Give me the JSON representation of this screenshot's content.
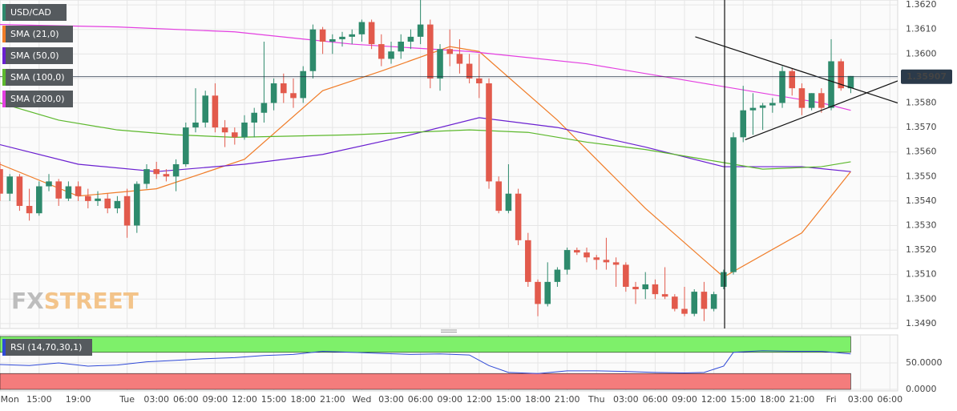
{
  "chart_data": [
    {
      "type": "candlestick",
      "title": "USD/CAD",
      "x": [
        0,
        1,
        2,
        3,
        4,
        5,
        6,
        7,
        8,
        9,
        10,
        11,
        12,
        13,
        14,
        15,
        16,
        17,
        18,
        19,
        20,
        21,
        22,
        23,
        24,
        25,
        26,
        27,
        28,
        29,
        30,
        31,
        32,
        33,
        34,
        35,
        36,
        37,
        38,
        39,
        40,
        41,
        42,
        43,
        44,
        45,
        46,
        47,
        48,
        49,
        50,
        51,
        52,
        53,
        54,
        55,
        56,
        57,
        58,
        59,
        60,
        61,
        62,
        63,
        64,
        65,
        66,
        67,
        68,
        69,
        70,
        71,
        72,
        73,
        74,
        75,
        76,
        77,
        78,
        79,
        80,
        81,
        82,
        83,
        84,
        85,
        86,
        87
      ],
      "open": [
        1.3553,
        1.3543,
        1.355,
        1.3538,
        1.3535,
        1.3546,
        1.3548,
        1.3541,
        1.3546,
        1.3542,
        1.354,
        1.3541,
        1.3537,
        1.3542,
        1.353,
        1.3547,
        1.3553,
        1.3551,
        1.355,
        1.3555,
        1.357,
        1.3572,
        1.3583,
        1.357,
        1.3568,
        1.3566,
        1.3572,
        1.3576,
        1.358,
        1.3588,
        1.3584,
        1.3582,
        1.3593,
        1.361,
        1.3605,
        1.3606,
        1.3607,
        1.3608,
        1.3613,
        1.3604,
        1.3598,
        1.3601,
        1.3605,
        1.3607,
        1.3612,
        1.359,
        1.3602,
        1.36,
        1.3596,
        1.359,
        1.3588,
        1.3548,
        1.3536,
        1.3543,
        1.3524,
        1.3507,
        1.3498,
        1.3507,
        1.3512,
        1.352,
        1.3519,
        1.3517,
        1.3516,
        1.3515,
        1.3514,
        1.3505,
        1.3504,
        1.3506,
        1.3502,
        1.3501,
        1.3496,
        1.3494,
        1.3503,
        1.3496,
        1.3505,
        1.3511,
        1.3566,
        1.3577,
        1.3578,
        1.3579,
        1.358,
        1.3593,
        1.3586,
        1.3578,
        1.3584,
        1.3578,
        1.3597,
        1.3586
      ],
      "high": [
        1.3556,
        1.3551,
        1.3551,
        1.3545,
        1.3548,
        1.3551,
        1.3549,
        1.3548,
        1.3548,
        1.3545,
        1.3544,
        1.3543,
        1.3542,
        1.3545,
        1.3548,
        1.3555,
        1.3556,
        1.3553,
        1.3557,
        1.3572,
        1.3586,
        1.3585,
        1.3588,
        1.3573,
        1.357,
        1.3575,
        1.3578,
        1.3605,
        1.359,
        1.3592,
        1.359,
        1.3595,
        1.3612,
        1.3611,
        1.3608,
        1.3609,
        1.361,
        1.3614,
        1.3614,
        1.3608,
        1.3605,
        1.3608,
        1.361,
        1.3625,
        1.3614,
        1.3604,
        1.361,
        1.3606,
        1.36,
        1.36,
        1.359,
        1.355,
        1.3555,
        1.3545,
        1.3527,
        1.3508,
        1.3515,
        1.3513,
        1.3521,
        1.3521,
        1.3521,
        1.3518,
        1.3525,
        1.3517,
        1.3515,
        1.3507,
        1.3511,
        1.3508,
        1.3513,
        1.3502,
        1.3505,
        1.3504,
        1.3507,
        1.3503,
        1.3512,
        1.3568,
        1.3587,
        1.3584,
        1.358,
        1.3582,
        1.3595,
        1.3594,
        1.3588,
        1.3584,
        1.3586,
        1.3606,
        1.3598,
        1.3591
      ],
      "low": [
        1.354,
        1.354,
        1.3536,
        1.3532,
        1.3534,
        1.3544,
        1.3538,
        1.354,
        1.354,
        1.3537,
        1.3538,
        1.3535,
        1.3535,
        1.3525,
        1.3527,
        1.3545,
        1.3549,
        1.3548,
        1.3544,
        1.3554,
        1.3568,
        1.357,
        1.3568,
        1.3562,
        1.3563,
        1.3565,
        1.3566,
        1.3572,
        1.3577,
        1.358,
        1.3578,
        1.358,
        1.359,
        1.36,
        1.36,
        1.3603,
        1.3604,
        1.3605,
        1.3602,
        1.3595,
        1.3596,
        1.3598,
        1.3602,
        1.3604,
        1.3586,
        1.3585,
        1.3595,
        1.3592,
        1.3588,
        1.3582,
        1.3545,
        1.3535,
        1.3535,
        1.3522,
        1.3505,
        1.3493,
        1.3497,
        1.3505,
        1.351,
        1.3518,
        1.3515,
        1.3512,
        1.3512,
        1.3505,
        1.3503,
        1.3498,
        1.35,
        1.35,
        1.35,
        1.3495,
        1.3493,
        1.3493,
        1.3491,
        1.3495,
        1.3504,
        1.351,
        1.3564,
        1.3567,
        1.3569,
        1.3576,
        1.3578,
        1.3583,
        1.3575,
        1.3577,
        1.3576,
        1.3577,
        1.3585,
        1.3584
      ],
      "close": [
        1.3543,
        1.355,
        1.3538,
        1.3535,
        1.3546,
        1.3548,
        1.3541,
        1.3546,
        1.3542,
        1.354,
        1.3541,
        1.3537,
        1.354,
        1.353,
        1.3547,
        1.3553,
        1.3551,
        1.355,
        1.3555,
        1.357,
        1.3572,
        1.3583,
        1.357,
        1.3568,
        1.3566,
        1.3572,
        1.3576,
        1.358,
        1.3588,
        1.3584,
        1.3582,
        1.3593,
        1.361,
        1.3605,
        1.3606,
        1.3607,
        1.3608,
        1.3613,
        1.3604,
        1.3598,
        1.3601,
        1.3605,
        1.3607,
        1.3612,
        1.359,
        1.3602,
        1.36,
        1.3596,
        1.359,
        1.3588,
        1.3548,
        1.3536,
        1.3543,
        1.3524,
        1.3507,
        1.3498,
        1.3507,
        1.3512,
        1.352,
        1.3519,
        1.3517,
        1.3516,
        1.3515,
        1.3514,
        1.3505,
        1.3504,
        1.3506,
        1.3502,
        1.3501,
        1.3496,
        1.3494,
        1.3503,
        1.3496,
        1.3502,
        1.3511,
        1.3566,
        1.3577,
        1.3578,
        1.3579,
        1.358,
        1.3593,
        1.3586,
        1.3578,
        1.3584,
        1.3578,
        1.3597,
        1.3586,
        1.3591
      ],
      "up_color": "#2e8a6c",
      "down_color": "#e25a4c",
      "title_color": "#2e8a6c",
      "series": [
        {
          "name": "SMA (21,0)",
          "color": "#f07c28",
          "x": [
            0,
            8,
            16,
            25,
            33,
            39,
            46,
            49,
            57,
            66,
            74,
            82,
            87
          ],
          "values": [
            1.3555,
            1.3542,
            1.3545,
            1.3557,
            1.3585,
            1.3593,
            1.3603,
            1.3601,
            1.3573,
            1.3537,
            1.3509,
            1.3527,
            1.3552
          ]
        },
        {
          "name": "SMA (50,0)",
          "color": "#6a1fd0",
          "x": [
            0,
            8,
            16,
            25,
            33,
            41,
            49,
            57,
            66,
            74,
            82,
            87
          ],
          "values": [
            1.3563,
            1.3555,
            1.3552,
            1.3555,
            1.3559,
            1.3566,
            1.3574,
            1.357,
            1.3562,
            1.3554,
            1.3554,
            1.3552
          ]
        },
        {
          "name": "SMA (100,0)",
          "color": "#5cb82c",
          "x": [
            0,
            6,
            12,
            18,
            24,
            36,
            48,
            54,
            60,
            66,
            72,
            78,
            84,
            87
          ],
          "values": [
            1.358,
            1.3573,
            1.3569,
            1.3567,
            1.3566,
            1.3567,
            1.3569,
            1.3568,
            1.3564,
            1.3561,
            1.3557,
            1.3553,
            1.3554,
            1.3556
          ]
        },
        {
          "name": "SMA (200,0)",
          "color": "#e33ee0",
          "x": [
            0,
            12,
            24,
            36,
            48,
            60,
            72,
            84,
            87
          ],
          "values": [
            1.3612,
            1.3611,
            1.3609,
            1.3604,
            1.3601,
            1.3596,
            1.3588,
            1.358,
            1.3577
          ]
        }
      ],
      "trendlines": [
        {
          "x": [
            71.1,
            91.8
          ],
          "values": [
            1.3607,
            1.358
          ]
        },
        {
          "x": [
            76.2,
            91.8
          ],
          "values": [
            1.3565,
            1.3589
          ]
        }
      ],
      "marker_x": 74.1,
      "last_price": 1.35907,
      "xlim": [
        0,
        91.8
      ],
      "xticks": [
        {
          "value": 1,
          "label": "Mon"
        },
        {
          "value": 4,
          "label": "15:00"
        },
        {
          "value": 8,
          "label": "19:00"
        },
        {
          "value": 13,
          "label": "Tue"
        },
        {
          "value": 16,
          "label": "03:00"
        },
        {
          "value": 19,
          "label": "06:00"
        },
        {
          "value": 22,
          "label": "09:00"
        },
        {
          "value": 25,
          "label": "12:00"
        },
        {
          "value": 28,
          "label": "15:00"
        },
        {
          "value": 31,
          "label": "18:00"
        },
        {
          "value": 34,
          "label": "21:00"
        },
        {
          "value": 37,
          "label": "Wed"
        },
        {
          "value": 40,
          "label": "03:00"
        },
        {
          "value": 43,
          "label": "06:00"
        },
        {
          "value": 46,
          "label": "09:00"
        },
        {
          "value": 49,
          "label": "12:00"
        },
        {
          "value": 52,
          "label": "15:00"
        },
        {
          "value": 55,
          "label": "18:00"
        },
        {
          "value": 58,
          "label": "21:00"
        },
        {
          "value": 61,
          "label": "Thu"
        },
        {
          "value": 64,
          "label": "03:00"
        },
        {
          "value": 67,
          "label": "06:00"
        },
        {
          "value": 70,
          "label": "09:00"
        },
        {
          "value": 73,
          "label": "12:00"
        },
        {
          "value": 76,
          "label": "15:00"
        },
        {
          "value": 79,
          "label": "18:00"
        },
        {
          "value": 82,
          "label": "21:00"
        },
        {
          "value": 85,
          "label": "Fri"
        },
        {
          "value": 88,
          "label": "03:00"
        },
        {
          "value": 91,
          "label": "06:00"
        }
      ],
      "ylim": [
        1.3488,
        1.3622
      ],
      "yticks": [
        {
          "value": 1.349,
          "label": "1.3490"
        },
        {
          "value": 1.35,
          "label": "1.3500"
        },
        {
          "value": 1.351,
          "label": "1.3510"
        },
        {
          "value": 1.352,
          "label": "1.3520"
        },
        {
          "value": 1.353,
          "label": "1.3530"
        },
        {
          "value": 1.354,
          "label": "1.3540"
        },
        {
          "value": 1.355,
          "label": "1.3550"
        },
        {
          "value": 1.356,
          "label": "1.3560"
        },
        {
          "value": 1.357,
          "label": "1.3570"
        },
        {
          "value": 1.358,
          "label": "1.3580"
        },
        {
          "value": 1.359,
          "label": "1.3590"
        },
        {
          "value": 1.36,
          "label": "1.3600"
        },
        {
          "value": 1.361,
          "label": "1.3610"
        },
        {
          "value": 1.362,
          "label": "1.3620"
        }
      ],
      "grid": true,
      "watermark": [
        "FX",
        "STREET"
      ]
    },
    {
      "type": "line",
      "title": "RSI (14,70,30,1)",
      "color": "#2f49d6",
      "x": [
        0,
        3,
        6,
        9,
        12,
        15,
        18,
        21,
        24,
        27,
        30,
        33,
        36,
        39,
        42,
        45,
        48,
        50,
        52,
        55,
        58,
        61,
        64,
        67,
        70,
        72,
        74,
        75,
        78,
        81,
        84,
        87
      ],
      "values": [
        47,
        45,
        50,
        44,
        46,
        52,
        55,
        58,
        60,
        64,
        66,
        72,
        70,
        68,
        66,
        67,
        65,
        45,
        32,
        30,
        35,
        35,
        34,
        32,
        31,
        32,
        44,
        70,
        73,
        72,
        72,
        67
      ],
      "zones": [
        {
          "from": 70,
          "to": 100,
          "color": "#7ef06a"
        },
        {
          "from": 0,
          "to": 30,
          "color": "#f47c7c"
        }
      ],
      "xlim": [
        0,
        91.8
      ],
      "ylim": [
        -3,
        103
      ],
      "yticks": [
        {
          "value": 50,
          "label": "50.0000"
        },
        {
          "value": 0,
          "label": "0.0000"
        }
      ],
      "grid": true
    }
  ]
}
